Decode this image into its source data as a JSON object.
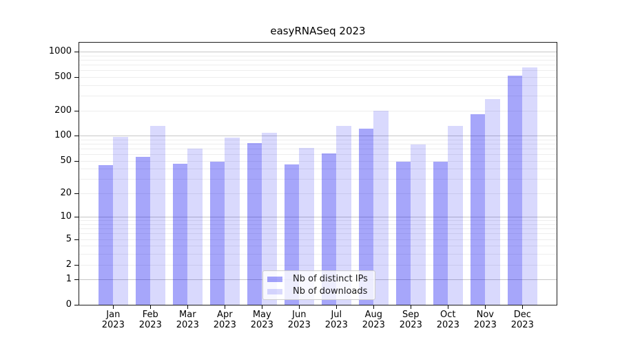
{
  "title": "easyRNASeq 2023",
  "chart_data": {
    "type": "bar",
    "title": "easyRNASeq 2023",
    "categories": [
      "Jan",
      "Feb",
      "Mar",
      "Apr",
      "May",
      "Jun",
      "Jul",
      "Aug",
      "Sep",
      "Oct",
      "Nov",
      "Dec"
    ],
    "category_year": "2023",
    "series": [
      {
        "name": "Nb of distinct IPs",
        "color": "rgba(0,0,242,0.35)",
        "values": [
          44,
          56,
          46,
          49,
          82,
          45,
          61,
          121,
          49,
          49,
          182,
          520
        ]
      },
      {
        "name": "Nb of downloads",
        "color": "rgba(0,0,242,0.15)",
        "values": [
          96,
          130,
          70,
          95,
          108,
          71,
          130,
          198,
          78,
          130,
          274,
          643
        ]
      }
    ],
    "xlabel": "",
    "ylabel": "",
    "yscale": "log1p",
    "ylim": [
      0,
      1275
    ],
    "yticks": [
      0,
      1,
      2,
      5,
      10,
      20,
      50,
      100,
      200,
      500,
      1000
    ],
    "grid": "horizontal",
    "grid_major_color": "#c6c6c6",
    "grid_minor_color": "#ededed",
    "legend_position": "lower center"
  }
}
